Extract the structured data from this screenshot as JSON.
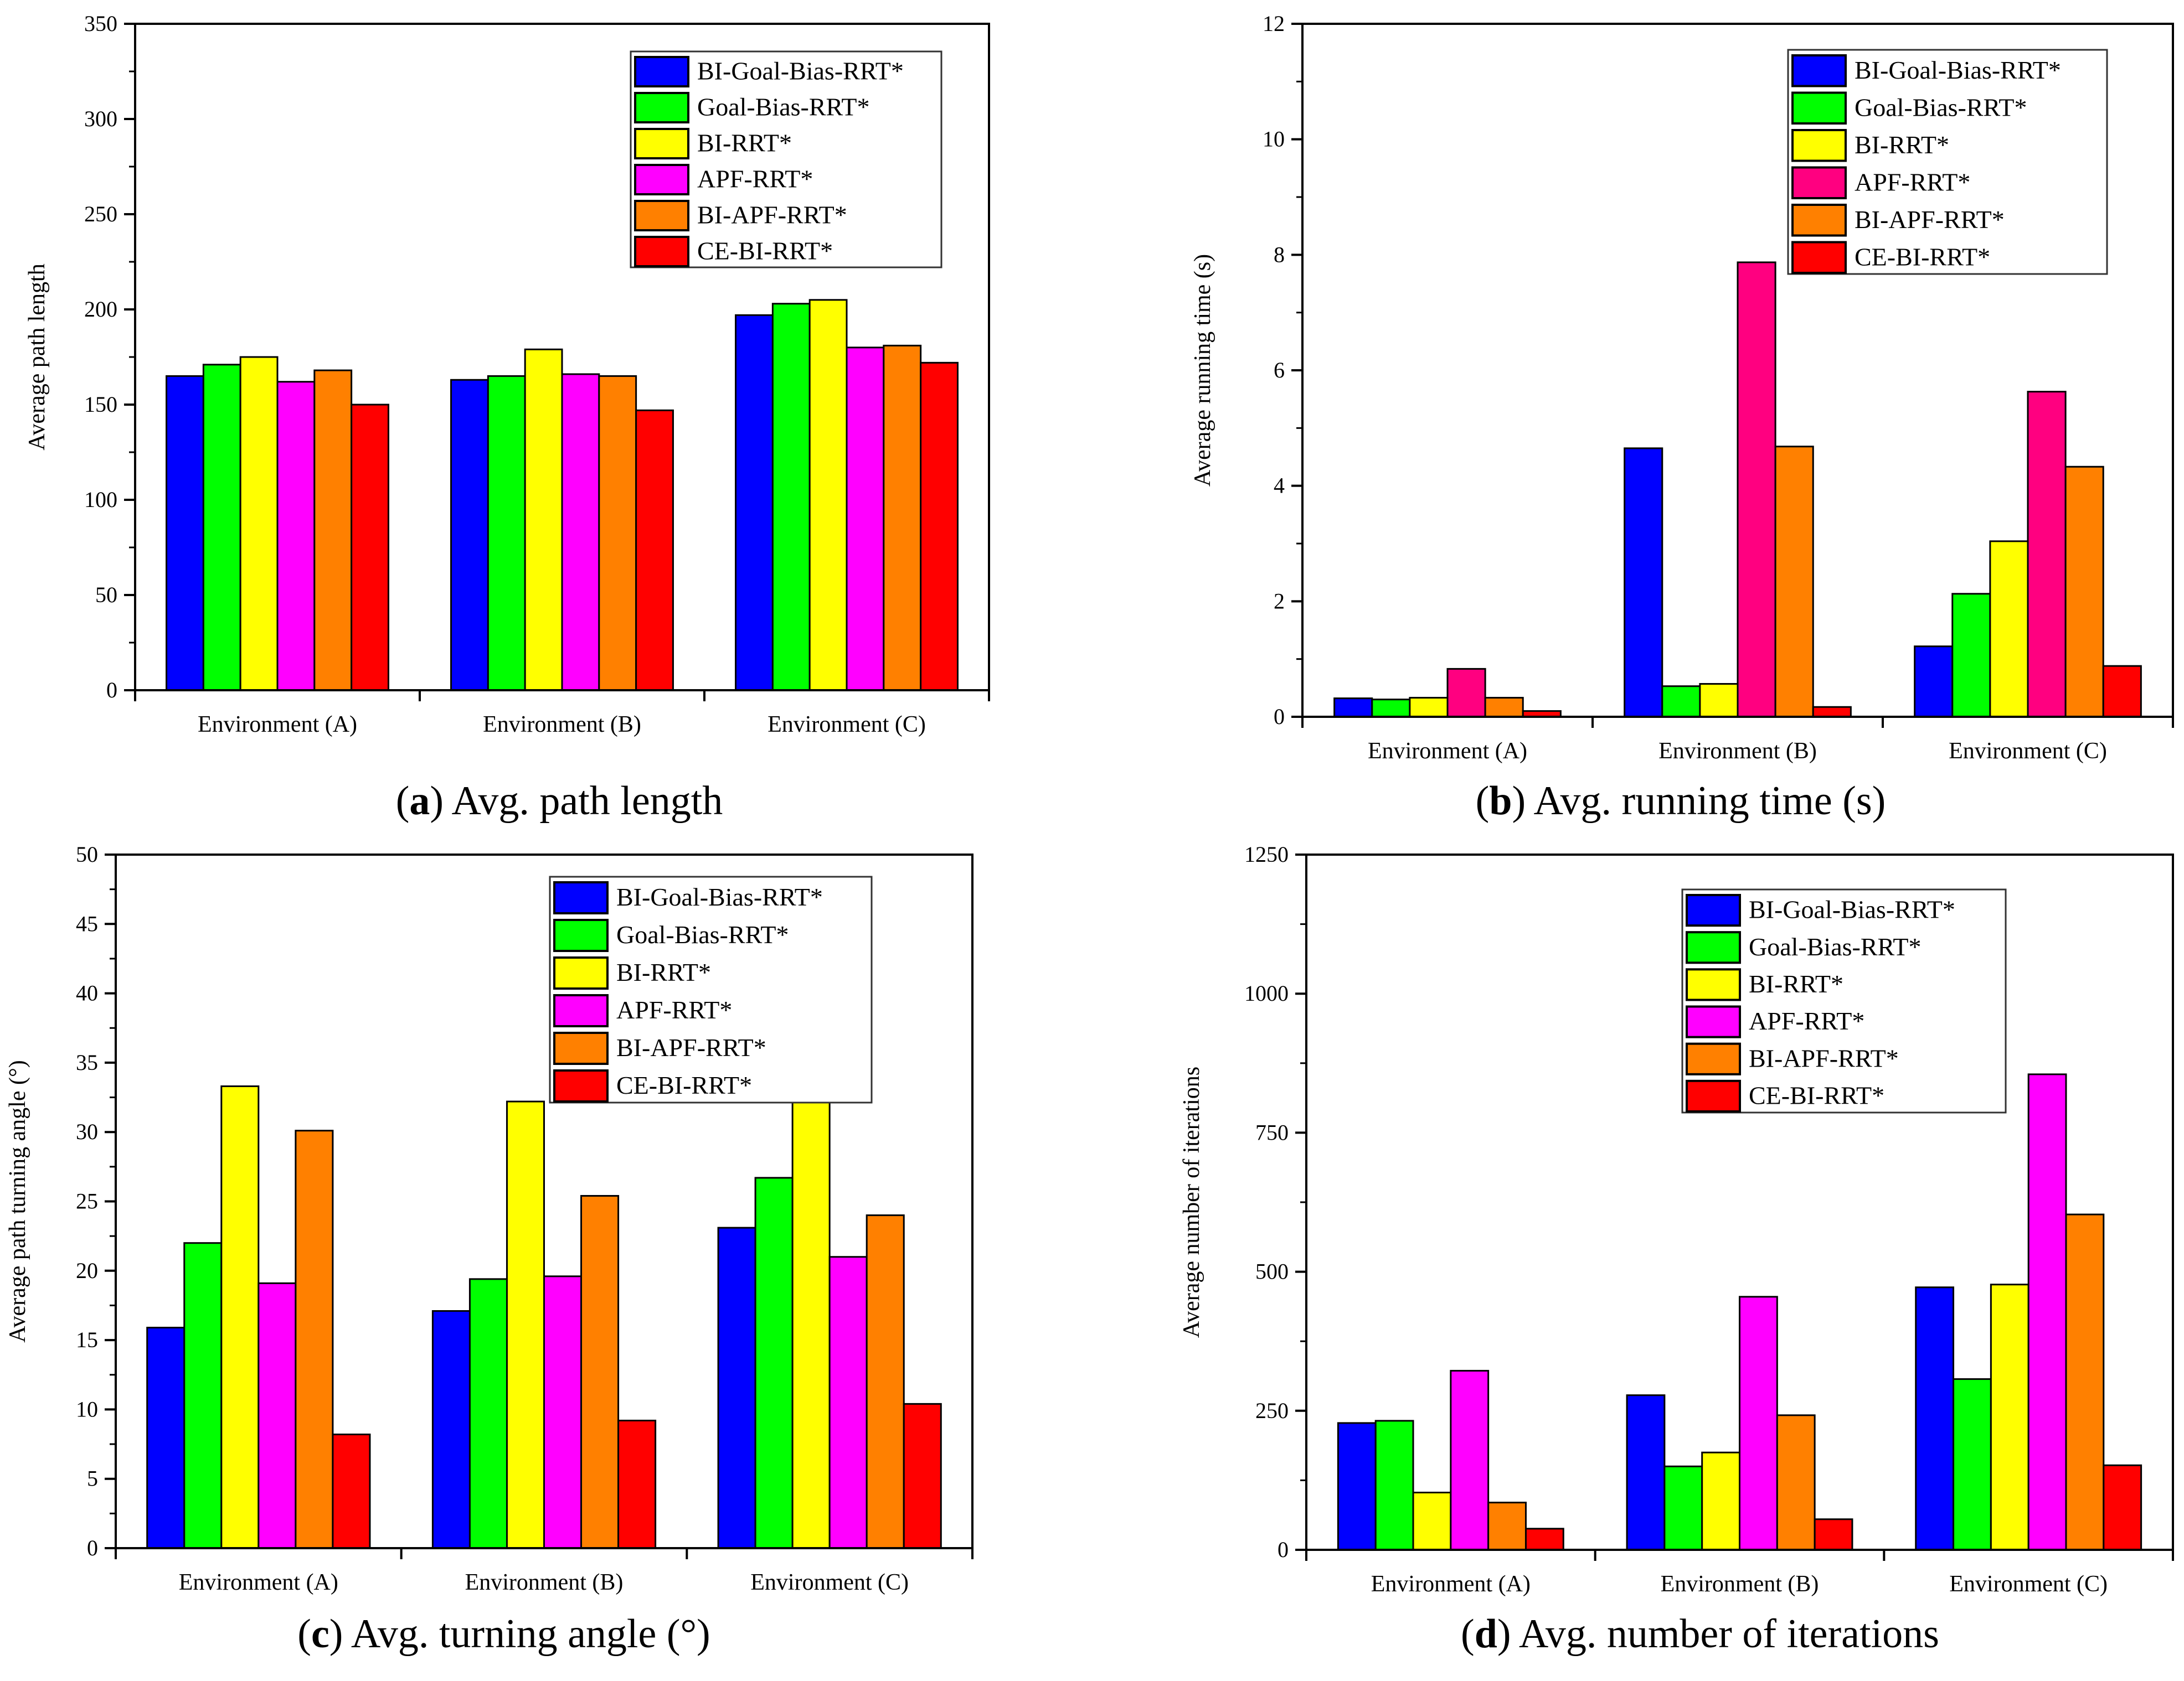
{
  "colors": {
    "BI-Goal-Bias-RRT*": "#0000FF",
    "Goal-Bias-RRT*": "#00FF00",
    "BI-RRT*": "#FFFF00",
    "APF-RRT*": "#FF00FF",
    "APF-RRT*-b": "#FF0080",
    "BI-APF-RRT*": "#FF8000",
    "CE-BI-RRT*": "#FF0000"
  },
  "chart_data": [
    {
      "type": "bar",
      "id": "a",
      "caption_letter": "a",
      "caption_text": ") Avg. path length",
      "caption_open": "(",
      "ylabel": "Average path length",
      "xlabel": "",
      "ylim": [
        0,
        350
      ],
      "yticks": [
        0,
        50,
        100,
        150,
        200,
        250,
        300,
        350
      ],
      "categories": [
        "Environment (A)",
        "Environment (B)",
        "Environment (C)"
      ],
      "legend": "top-right",
      "series": [
        {
          "name": "BI-Goal-Bias-RRT*",
          "color": "#0000FF",
          "values": [
            165,
            163,
            197
          ]
        },
        {
          "name": "Goal-Bias-RRT*",
          "color": "#00FF00",
          "values": [
            171,
            165,
            203
          ]
        },
        {
          "name": "BI-RRT*",
          "color": "#FFFF00",
          "values": [
            175,
            179,
            205
          ]
        },
        {
          "name": "APF-RRT*",
          "color": "#FF00FF",
          "values": [
            162,
            166,
            180
          ]
        },
        {
          "name": "BI-APF-RRT*",
          "color": "#FF8000",
          "values": [
            168,
            165,
            181
          ]
        },
        {
          "name": "CE-BI-RRT*",
          "color": "#FF0000",
          "values": [
            150,
            147,
            172
          ]
        }
      ]
    },
    {
      "type": "bar",
      "id": "b",
      "caption_letter": "b",
      "caption_text": ") Avg. running time (s)",
      "caption_open": "(",
      "ylabel": "Average running time (s)",
      "xlabel": "",
      "ylim": [
        0,
        12
      ],
      "yticks": [
        0,
        2,
        4,
        6,
        8,
        10,
        12
      ],
      "categories": [
        "Environment (A)",
        "Environment (B)",
        "Environment (C)"
      ],
      "legend": "top-right",
      "series": [
        {
          "name": "BI-Goal-Bias-RRT*",
          "color": "#0000FF",
          "values": [
            0.32,
            4.65,
            1.22
          ]
        },
        {
          "name": "Goal-Bias-RRT*",
          "color": "#00FF00",
          "values": [
            0.3,
            0.53,
            2.13
          ]
        },
        {
          "name": "BI-RRT*",
          "color": "#FFFF00",
          "values": [
            0.33,
            0.57,
            3.04
          ]
        },
        {
          "name": "APF-RRT*",
          "color": "#FF0080",
          "values": [
            0.83,
            7.87,
            5.63
          ]
        },
        {
          "name": "BI-APF-RRT*",
          "color": "#FF8000",
          "values": [
            0.33,
            4.68,
            4.33
          ]
        },
        {
          "name": "CE-BI-RRT*",
          "color": "#FF0000",
          "values": [
            0.1,
            0.17,
            0.88
          ]
        }
      ]
    },
    {
      "type": "bar",
      "id": "c",
      "caption_letter": "c",
      "caption_text": ") Avg. turning angle (°)",
      "caption_open": "(",
      "ylabel": "Average path turning angle (°)",
      "xlabel": "",
      "ylim": [
        0,
        50
      ],
      "yticks": [
        0,
        5,
        10,
        15,
        20,
        25,
        30,
        35,
        40,
        45,
        50
      ],
      "categories": [
        "Environment (A)",
        "Environment (B)",
        "Environment (C)"
      ],
      "legend": "top-right",
      "series": [
        {
          "name": "BI-Goal-Bias-RRT*",
          "color": "#0000FF",
          "values": [
            15.9,
            17.1,
            23.1
          ]
        },
        {
          "name": "Goal-Bias-RRT*",
          "color": "#00FF00",
          "values": [
            22.0,
            19.4,
            26.7
          ]
        },
        {
          "name": "BI-RRT*",
          "color": "#FFFF00",
          "values": [
            33.3,
            32.2,
            33.7
          ]
        },
        {
          "name": "APF-RRT*",
          "color": "#FF00FF",
          "values": [
            19.1,
            19.6,
            21.0
          ]
        },
        {
          "name": "BI-APF-RRT*",
          "color": "#FF8000",
          "values": [
            30.1,
            25.4,
            24.0
          ]
        },
        {
          "name": "CE-BI-RRT*",
          "color": "#FF0000",
          "values": [
            8.2,
            9.2,
            10.4
          ]
        }
      ]
    },
    {
      "type": "bar",
      "id": "d",
      "caption_letter": "d",
      "caption_text": ") Avg. number of iterations",
      "caption_open": "(",
      "ylabel": "Average number of  iterations",
      "xlabel": "",
      "ylim": [
        0,
        1250
      ],
      "yticks": [
        0,
        250,
        500,
        750,
        1000,
        1250
      ],
      "categories": [
        "Environment (A)",
        "Environment (B)",
        "Environment (C)"
      ],
      "legend": "top-right",
      "series": [
        {
          "name": "BI-Goal-Bias-RRT*",
          "color": "#0000FF",
          "values": [
            228,
            278,
            472
          ]
        },
        {
          "name": "Goal-Bias-RRT*",
          "color": "#00FF00",
          "values": [
            232,
            150,
            307
          ]
        },
        {
          "name": "BI-RRT*",
          "color": "#FFFF00",
          "values": [
            103,
            175,
            477
          ]
        },
        {
          "name": "APF-RRT*",
          "color": "#FF00FF",
          "values": [
            322,
            455,
            855
          ]
        },
        {
          "name": "BI-APF-RRT*",
          "color": "#FF8000",
          "values": [
            85,
            242,
            603
          ]
        },
        {
          "name": "CE-BI-RRT*",
          "color": "#FF0000",
          "values": [
            38,
            55,
            152
          ]
        }
      ]
    }
  ]
}
